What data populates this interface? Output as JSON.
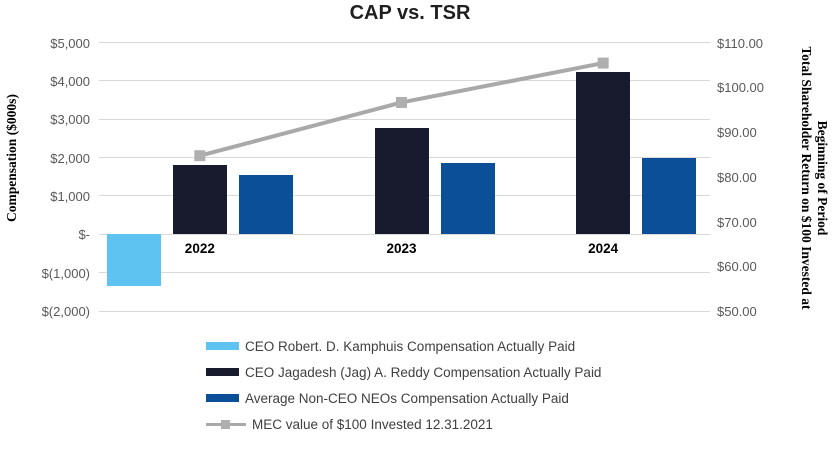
{
  "chart_data": {
    "type": "bar+line combo",
    "title": "CAP vs. TSR",
    "categories": [
      "2022",
      "2023",
      "2024"
    ],
    "left_axis": {
      "label": "Compensation ($000s)",
      "tick_labels": [
        "$5,000",
        "$4,000",
        "$3,000",
        "$2,000",
        "$1,000",
        "$-",
        "$(1,000)",
        "$(2,000)"
      ],
      "max": 5000,
      "min": -2000,
      "step": 1000
    },
    "right_axis": {
      "label_line1": "Total Shareholder Return on $100 Invested at",
      "label_line2": "Beginning of Period",
      "tick_labels": [
        "$110.00",
        "$100.00",
        "$90.00",
        "$80.00",
        "$70.00",
        "$60.00",
        "$50.00"
      ],
      "max": 110,
      "min": 50,
      "step": 10
    },
    "grid": true,
    "legend_position": "bottom",
    "series": [
      {
        "id": "kamphuis-cap",
        "name": "CEO Robert. D. Kamphuis Compensation Actually Paid",
        "type": "bar",
        "axis": "left",
        "color": "#5fc3f1",
        "values": [
          -1350,
          null,
          null
        ]
      },
      {
        "id": "reddy-cap",
        "name": "CEO Jagadesh (Jag) A. Reddy Compensation Actually Paid",
        "type": "bar",
        "axis": "left",
        "color": "#171b2d",
        "values": [
          1800,
          2760,
          4240
        ]
      },
      {
        "id": "neo-cap",
        "name": "Average Non-CEO NEOs Compensation Actually Paid",
        "type": "bar",
        "axis": "left",
        "color": "#0a4f98",
        "values": [
          1550,
          1850,
          1980
        ]
      },
      {
        "id": "mec-tsr",
        "name": "MEC value of $100 Invested 12.31.2021",
        "type": "line",
        "axis": "right",
        "color": "#a9a9a9",
        "marker_color": "#afafaf",
        "values": [
          84.7,
          96.6,
          105.4
        ]
      }
    ],
    "colors": {
      "gridline": "#d9d9d9",
      "tick_label": "#595959",
      "category_label": "#000000",
      "legend_text": "#404040",
      "title": "#1f1f1f"
    }
  }
}
